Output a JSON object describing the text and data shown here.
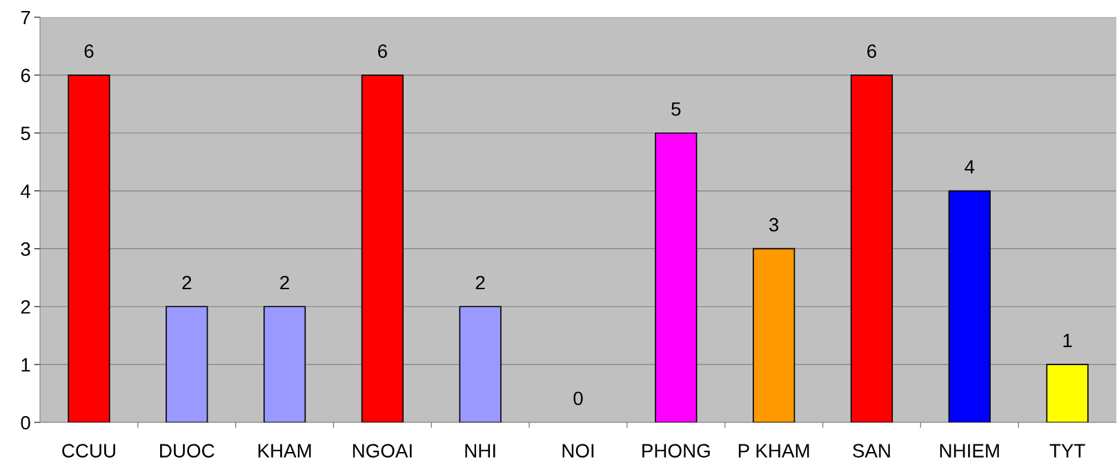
{
  "chart_data": {
    "type": "bar",
    "categories": [
      "CCUU",
      "DUOC",
      "KHAM",
      "NGOAI",
      "NHI",
      "NOI",
      "PHONG",
      "P KHAM",
      "SAN",
      "NHIEM",
      "TYT"
    ],
    "values": [
      6,
      2,
      2,
      6,
      2,
      0,
      5,
      3,
      6,
      4,
      1
    ],
    "colors": [
      "#ff0000",
      "#9999ff",
      "#9999ff",
      "#ff0000",
      "#9999ff",
      null,
      "#ff00ff",
      "#ff9900",
      "#ff0000",
      "#0000ff",
      "#ffff00"
    ],
    "ylim": [
      0,
      7
    ],
    "yticks": [
      0,
      1,
      2,
      3,
      4,
      5,
      6,
      7
    ],
    "grid": "y",
    "data_labels": true
  }
}
